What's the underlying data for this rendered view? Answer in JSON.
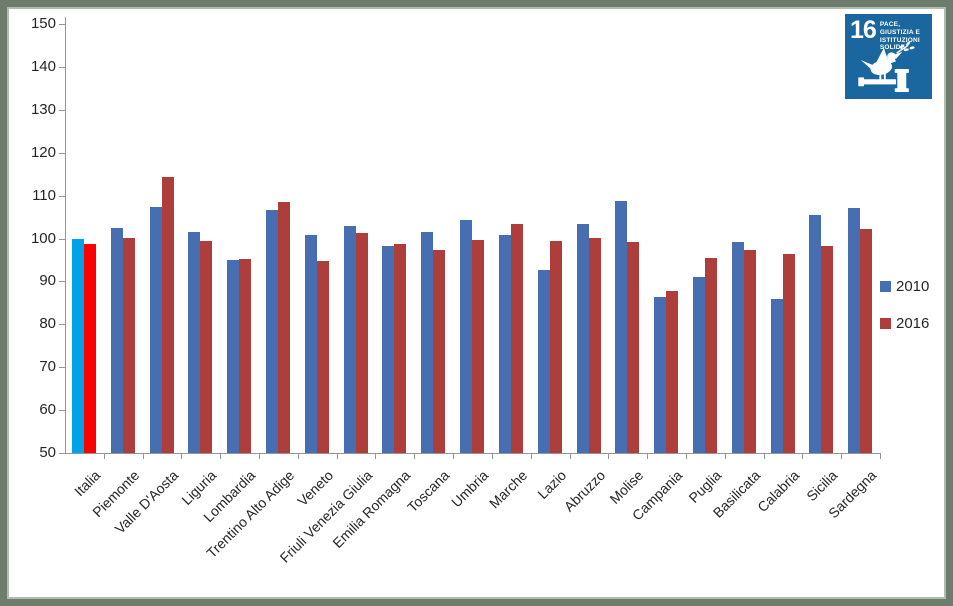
{
  "window": {
    "background": "#ffffff",
    "frame_border_color": "#6d7c6d"
  },
  "chart_data": {
    "type": "bar",
    "title": "",
    "xlabel": "",
    "ylabel": "",
    "categories": [
      "Italia",
      "Piemonte",
      "Valle D'Aosta",
      "Liguria",
      "Lombardia",
      "Trentino Alto Adige",
      "Veneto",
      "Friuli Venezia Giulia",
      "Emilia Romagna",
      "Toscana",
      "Umbria",
      "Marche",
      "Lazio",
      "Abruzzo",
      "Molise",
      "Campania",
      "Puglia",
      "Basilicata",
      "Calabria",
      "Sicilia",
      "Sardegna"
    ],
    "series": [
      {
        "name": "2010",
        "color": "#466EB0",
        "highlight_color": "#00A2E8",
        "values": [
          100.0,
          102.5,
          107.3,
          101.5,
          95.0,
          106.6,
          100.9,
          103.0,
          98.2,
          101.5,
          104.4,
          100.8,
          92.6,
          103.4,
          108.7,
          86.4,
          91.1,
          99.3,
          86.0,
          105.5,
          107.0
        ]
      },
      {
        "name": "2016",
        "color": "#AE3E3C",
        "highlight_color": "#FF0000",
        "values": [
          98.7,
          100.1,
          114.4,
          99.4,
          95.3,
          108.5,
          94.8,
          101.2,
          98.8,
          97.3,
          99.6,
          103.3,
          99.5,
          100.2,
          99.3,
          87.7,
          95.4,
          97.3,
          96.3,
          98.3,
          102.1
        ]
      }
    ],
    "highlight_category": "Italia",
    "ylim": [
      50,
      150
    ],
    "yticks": [
      150,
      140,
      130,
      120,
      110,
      100,
      90,
      80,
      70,
      60,
      50
    ],
    "grid": false,
    "legend_position": "middle-right",
    "axis_color": "#969696"
  },
  "sdg_badge": {
    "number": "16",
    "title_line1": "PACE, GIUSTIZIA E",
    "title_line2": "ISTITUZIONI SOLIDE",
    "background": "#19679E",
    "icon": "dove-on-gavel-icon"
  }
}
